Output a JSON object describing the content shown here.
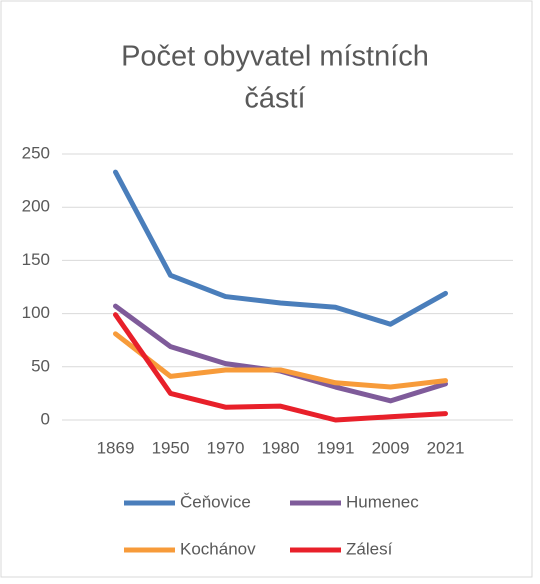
{
  "chart_data": {
    "type": "line",
    "title": [
      "Počet obyvatel místních",
      "částí"
    ],
    "categories": [
      "1869",
      "1950",
      "1970",
      "1980",
      "1991",
      "2009",
      "2021"
    ],
    "series": [
      {
        "name": "Čeňovice",
        "color": "#4a7ebb",
        "values": [
          233,
          136,
          116,
          110,
          106,
          90,
          119
        ]
      },
      {
        "name": "Humenec",
        "color": "#7f5b9a",
        "values": [
          107,
          69,
          53,
          46,
          31,
          18,
          34
        ]
      },
      {
        "name": "Kochánov",
        "color": "#f79b3a",
        "values": [
          81,
          41,
          47,
          47,
          35,
          31,
          37
        ]
      },
      {
        "name": "Zálesí",
        "color": "#e8202a",
        "values": [
          99,
          25,
          12,
          13,
          0,
          3,
          6
        ]
      }
    ],
    "ylim": [
      0,
      250
    ],
    "yticks": [
      0,
      50,
      100,
      150,
      200,
      250
    ],
    "grid": true,
    "legend": "bottom"
  }
}
